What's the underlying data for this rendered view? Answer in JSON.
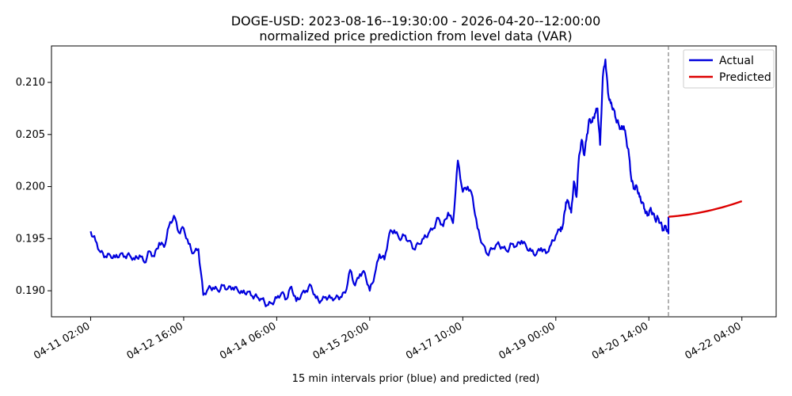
{
  "chart_data": {
    "type": "line",
    "title": "DOGE-USD: 2023-08-16--19:30:00 - 2026-04-20--12:00:00",
    "subtitle": "normalized price prediction from level data (VAR)",
    "xlabel": "15 min intervals prior (blue) and predicted (red)",
    "ylabel": "",
    "x_tick_labels": [
      "04-11 02:00",
      "04-12 16:00",
      "04-14 06:00",
      "04-15 20:00",
      "04-17 10:00",
      "04-19 00:00",
      "04-20 14:00",
      "04-22 04:00"
    ],
    "y_tick_labels": [
      "0.190",
      "0.195",
      "0.200",
      "0.205",
      "0.210"
    ],
    "y_ticks": [
      0.19,
      0.195,
      0.2,
      0.205,
      0.21
    ],
    "ylim": [
      0.1875,
      0.2135
    ],
    "xlim_hours": [
      -16,
      280
    ],
    "divider_hour": 236,
    "legend_position": "top-right",
    "grid": false,
    "series": [
      {
        "name": "Actual",
        "color": "#0000dd",
        "points": [
          [
            0,
            0.1957
          ],
          [
            2,
            0.1948
          ],
          [
            4,
            0.1937
          ],
          [
            6,
            0.1933
          ],
          [
            8,
            0.1934
          ],
          [
            10,
            0.1932
          ],
          [
            12,
            0.1935
          ],
          [
            14,
            0.1933
          ],
          [
            16,
            0.1934
          ],
          [
            18,
            0.193
          ],
          [
            20,
            0.1934
          ],
          [
            22,
            0.1927
          ],
          [
            24,
            0.1938
          ],
          [
            26,
            0.1933
          ],
          [
            28,
            0.1946
          ],
          [
            30,
            0.1942
          ],
          [
            32,
            0.1962
          ],
          [
            34,
            0.1972
          ],
          [
            36,
            0.1956
          ],
          [
            38,
            0.196
          ],
          [
            40,
            0.1945
          ],
          [
            42,
            0.1936
          ],
          [
            44,
            0.194
          ],
          [
            46,
            0.1896
          ],
          [
            48,
            0.1902
          ],
          [
            50,
            0.1903
          ],
          [
            52,
            0.19
          ],
          [
            54,
            0.1905
          ],
          [
            56,
            0.1902
          ],
          [
            58,
            0.1903
          ],
          [
            60,
            0.1901
          ],
          [
            62,
            0.1898
          ],
          [
            64,
            0.1899
          ],
          [
            66,
            0.1895
          ],
          [
            68,
            0.1894
          ],
          [
            70,
            0.1892
          ],
          [
            72,
            0.1886
          ],
          [
            74,
            0.1888
          ],
          [
            76,
            0.1893
          ],
          [
            78,
            0.1898
          ],
          [
            80,
            0.1892
          ],
          [
            82,
            0.1904
          ],
          [
            84,
            0.189
          ],
          [
            86,
            0.1896
          ],
          [
            88,
            0.19
          ],
          [
            90,
            0.1905
          ],
          [
            92,
            0.1893
          ],
          [
            94,
            0.189
          ],
          [
            96,
            0.1894
          ],
          [
            98,
            0.1893
          ],
          [
            100,
            0.1893
          ],
          [
            102,
            0.1894
          ],
          [
            104,
            0.1898
          ],
          [
            106,
            0.192
          ],
          [
            108,
            0.1905
          ],
          [
            110,
            0.1916
          ],
          [
            112,
            0.1917
          ],
          [
            114,
            0.19
          ],
          [
            116,
            0.1915
          ],
          [
            118,
            0.1935
          ],
          [
            120,
            0.193
          ],
          [
            122,
            0.1955
          ],
          [
            124,
            0.1958
          ],
          [
            126,
            0.195
          ],
          [
            128,
            0.1953
          ],
          [
            130,
            0.1948
          ],
          [
            132,
            0.194
          ],
          [
            134,
            0.1945
          ],
          [
            136,
            0.195
          ],
          [
            138,
            0.1955
          ],
          [
            140,
            0.196
          ],
          [
            142,
            0.197
          ],
          [
            144,
            0.1962
          ],
          [
            146,
            0.1975
          ],
          [
            148,
            0.1965
          ],
          [
            150,
            0.2025
          ],
          [
            152,
            0.1995
          ],
          [
            154,
            0.2
          ],
          [
            156,
            0.199
          ],
          [
            158,
            0.196
          ],
          [
            160,
            0.1945
          ],
          [
            162,
            0.1935
          ],
          [
            164,
            0.194
          ],
          [
            166,
            0.1945
          ],
          [
            168,
            0.1942
          ],
          [
            170,
            0.1938
          ],
          [
            172,
            0.1945
          ],
          [
            174,
            0.1943
          ],
          [
            176,
            0.1948
          ],
          [
            178,
            0.1942
          ],
          [
            180,
            0.1938
          ],
          [
            182,
            0.1935
          ],
          [
            184,
            0.1941
          ],
          [
            186,
            0.1936
          ],
          [
            188,
            0.1944
          ],
          [
            190,
            0.1953
          ],
          [
            192,
            0.196
          ]
        ],
        "compressed_tail_note": ""
      },
      {
        "name": "Predicted",
        "color": "#dd0000",
        "points": []
      }
    ]
  }
}
